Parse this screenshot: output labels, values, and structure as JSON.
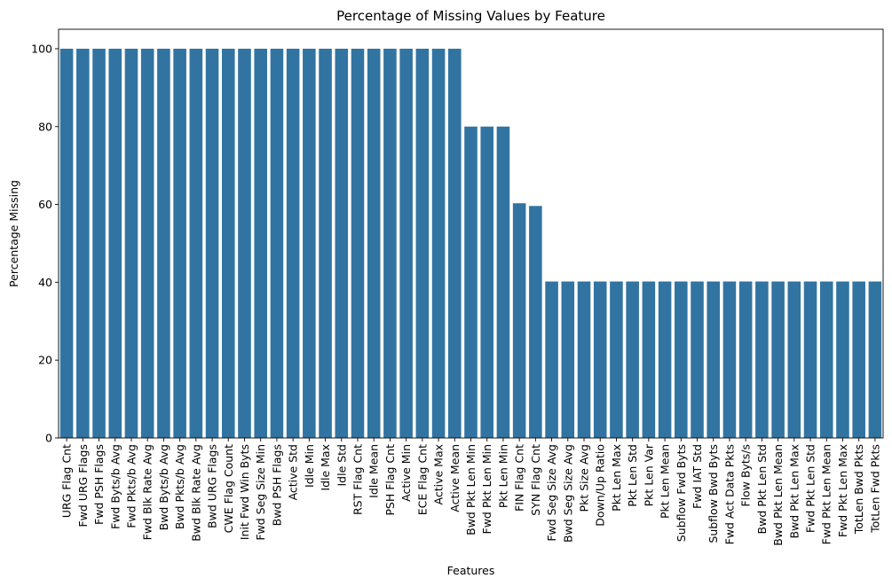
{
  "chart_data": {
    "type": "bar",
    "title": "Percentage of Missing Values by Feature",
    "xlabel": "Features",
    "ylabel": "Percentage Missing",
    "ylim": [
      0,
      105
    ],
    "yticks": [
      0,
      20,
      40,
      60,
      80,
      100
    ],
    "color": "#3274a1",
    "grid": false,
    "categories": [
      "URG Flag Cnt",
      "Fwd URG Flags",
      "Fwd PSH Flags",
      "Fwd Byts/b Avg",
      "Fwd Pkts/b Avg",
      "Fwd Blk Rate Avg",
      "Bwd Byts/b Avg",
      "Bwd Pkts/b Avg",
      "Bwd Blk Rate Avg",
      "Bwd URG Flags",
      "CWE Flag Count",
      "Init Fwd Win Byts",
      "Fwd Seg Size Min",
      "Bwd PSH Flags",
      "Active Std",
      "Idle Min",
      "Idle Max",
      "Idle Std",
      "RST Flag Cnt",
      "Idle Mean",
      "PSH Flag Cnt",
      "Active Min",
      "ECE Flag Cnt",
      "Active Max",
      "Active Mean",
      "Bwd Pkt Len Min",
      "Fwd Pkt Len Min",
      "Pkt Len Min",
      "FIN Flag Cnt",
      "SYN Flag Cnt",
      "Fwd Seg Size Avg",
      "Bwd Seg Size Avg",
      "Pkt Size Avg",
      "Down/Up Ratio",
      "Pkt Len Max",
      "Pkt Len Std",
      "Pkt Len Var",
      "Pkt Len Mean",
      "Subflow Fwd Byts",
      "Fwd IAT Std",
      "Subflow Bwd Byts",
      "Fwd Act Data Pkts",
      "Flow Byts/s",
      "Bwd Pkt Len Std",
      "Bwd Pkt Len Mean",
      "Bwd Pkt Len Max",
      "Fwd Pkt Len Std",
      "Fwd Pkt Len Mean",
      "Fwd Pkt Len Max",
      "TotLen Bwd Pkts",
      "TotLen Fwd Pkts"
    ],
    "values": [
      100,
      100,
      100,
      100,
      100,
      100,
      100,
      100,
      100,
      100,
      100,
      100,
      100,
      100,
      100,
      100,
      100,
      100,
      100,
      100,
      100,
      100,
      100,
      100,
      100,
      80,
      80,
      80,
      60.3,
      59.6,
      40.2,
      40.2,
      40.2,
      40.2,
      40.2,
      40.2,
      40.2,
      40.2,
      40.2,
      40.2,
      40.2,
      40.2,
      40.2,
      40.2,
      40.2,
      40.2,
      40.2,
      40.2,
      40.2,
      40.2,
      40.2
    ]
  }
}
